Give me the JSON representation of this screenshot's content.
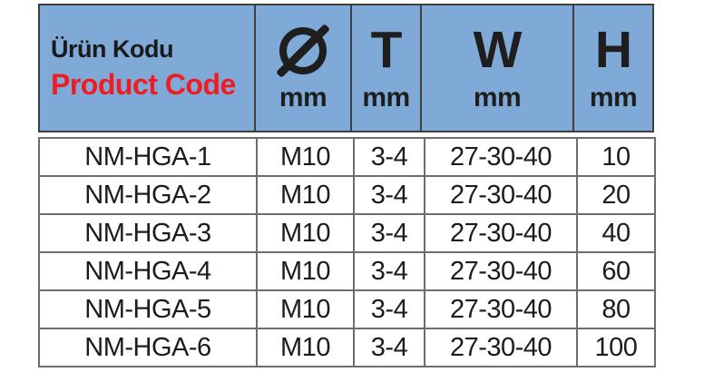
{
  "colors": {
    "header_bg": "#7FA9D6",
    "header_border": "#3F3F3F",
    "body_border": "#6D6D6D",
    "title_tr_color": "#1A1A1A",
    "title_en_color": "#EE1C23",
    "text_color": "#1C1C1C"
  },
  "table": {
    "header": {
      "title_tr": "Ürün Kodu",
      "title_en": "Product Code",
      "columns": [
        {
          "symbol": "Ø",
          "unit": "mm",
          "icon": "diameter-icon"
        },
        {
          "symbol": "T",
          "unit": "mm"
        },
        {
          "symbol": "W",
          "unit": "mm"
        },
        {
          "symbol": "H",
          "unit": "mm"
        }
      ]
    },
    "rows": [
      {
        "code": "NM-HGA-1",
        "diameter": "M10",
        "t": "3-4",
        "w": "27-30-40",
        "h": "10"
      },
      {
        "code": "NM-HGA-2",
        "diameter": "M10",
        "t": "3-4",
        "w": "27-30-40",
        "h": "20"
      },
      {
        "code": "NM-HGA-3",
        "diameter": "M10",
        "t": "3-4",
        "w": "27-30-40",
        "h": "40"
      },
      {
        "code": "NM-HGA-4",
        "diameter": "M10",
        "t": "3-4",
        "w": "27-30-40",
        "h": "60"
      },
      {
        "code": "NM-HGA-5",
        "diameter": "M10",
        "t": "3-4",
        "w": "27-30-40",
        "h": "80"
      },
      {
        "code": "NM-HGA-6",
        "diameter": "M10",
        "t": "3-4",
        "w": "27-30-40",
        "h": "100"
      }
    ]
  },
  "chart_data": {
    "type": "table",
    "title": "Ürün Kodu / Product Code",
    "columns": [
      "Ürün Kodu / Product Code",
      "Ø mm",
      "T mm",
      "W mm",
      "H mm"
    ],
    "rows": [
      [
        "NM-HGA-1",
        "M10",
        "3-4",
        "27-30-40",
        "10"
      ],
      [
        "NM-HGA-2",
        "M10",
        "3-4",
        "27-30-40",
        "20"
      ],
      [
        "NM-HGA-3",
        "M10",
        "3-4",
        "27-30-40",
        "40"
      ],
      [
        "NM-HGA-4",
        "M10",
        "3-4",
        "27-30-40",
        "60"
      ],
      [
        "NM-HGA-5",
        "M10",
        "3-4",
        "27-30-40",
        "80"
      ],
      [
        "NM-HGA-6",
        "M10",
        "3-4",
        "27-30-40",
        "100"
      ]
    ]
  }
}
